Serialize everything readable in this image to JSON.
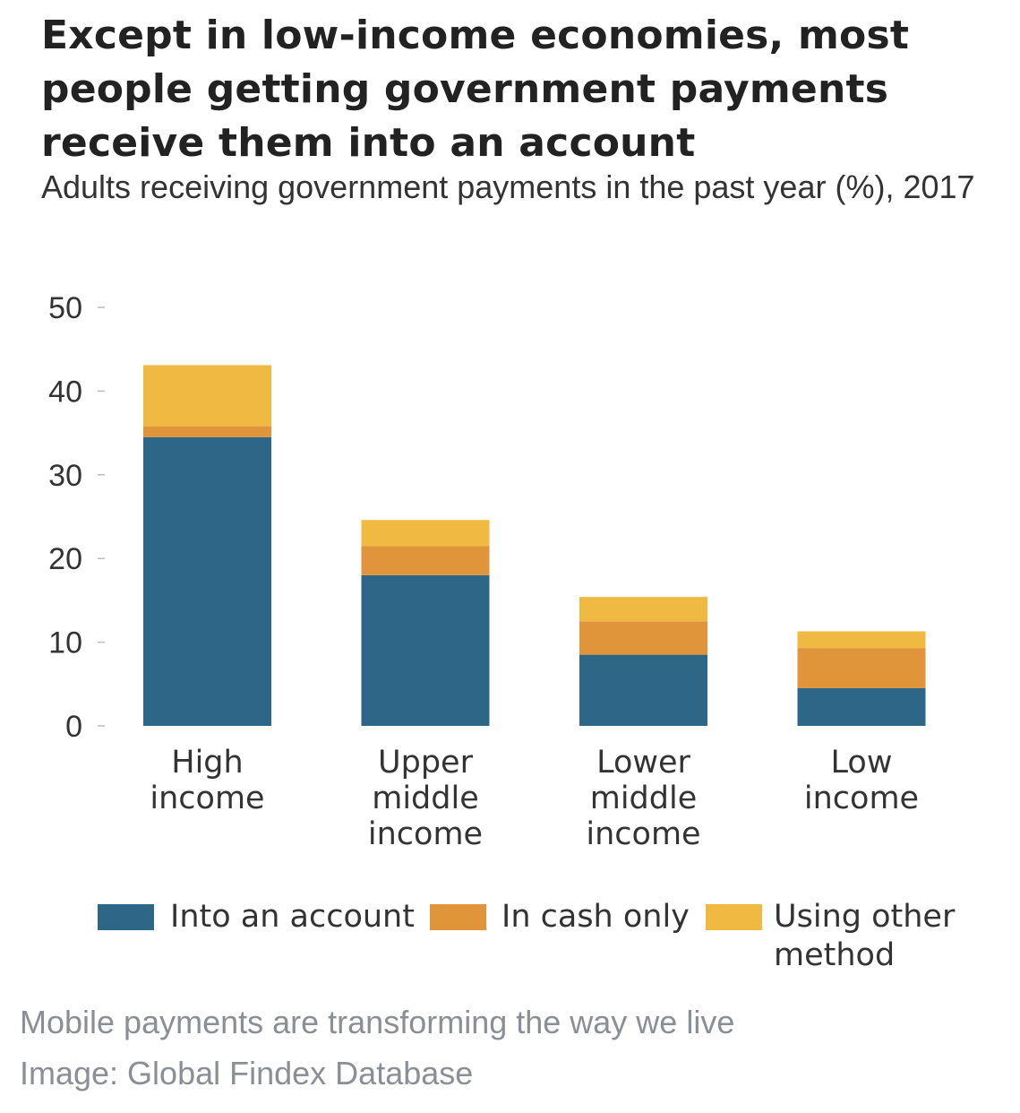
{
  "chart_data": {
    "type": "bar",
    "stacked": true,
    "title": "Except in low-income economies, most people getting government payments receive them into an account",
    "subtitle": "Adults receiving government payments in the past year (%), 2017",
    "categories": [
      [
        "High",
        "income"
      ],
      [
        "Upper",
        "middle",
        "income"
      ],
      [
        "Lower",
        "middle",
        "income"
      ],
      [
        "Low",
        "income"
      ]
    ],
    "series": [
      {
        "name": "Into an account",
        "color": "#2e6688",
        "values": [
          34.5,
          18,
          8.5,
          4.5
        ]
      },
      {
        "name": "In cash only",
        "color": "#e0953a",
        "values": [
          1.3,
          3.5,
          4,
          4.8
        ]
      },
      {
        "name": "Using other method",
        "legend_lines": [
          "Using other",
          "method"
        ],
        "color": "#f0b942",
        "values": [
          7.3,
          3.1,
          2.9,
          2
        ]
      }
    ],
    "yticks": [
      0,
      10,
      20,
      30,
      40,
      50
    ],
    "ylim": [
      0,
      50
    ],
    "grid": false,
    "legend_position": "bottom"
  },
  "caption": {
    "line1": "Mobile payments are transforming the way we live",
    "line2": "Image: Global Findex Database"
  }
}
